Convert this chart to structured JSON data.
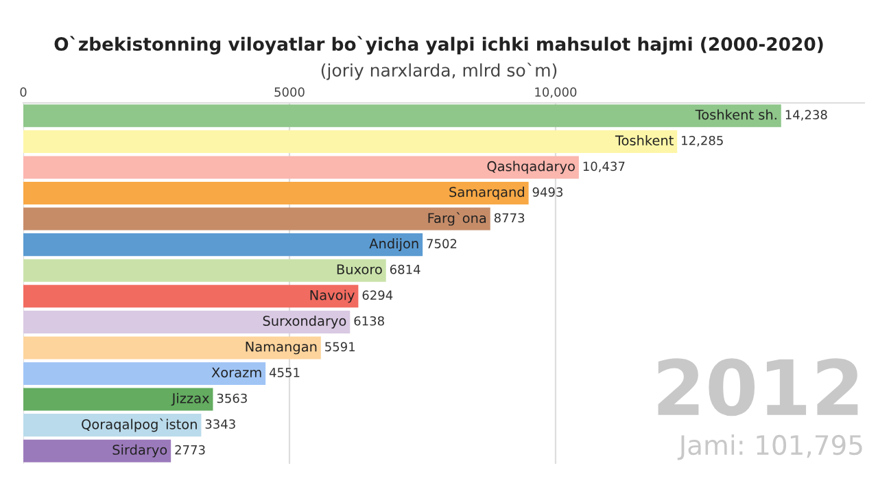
{
  "chart_data": {
    "type": "bar",
    "orientation": "horizontal",
    "title": "O`zbekistonning viloyatlar bo`yicha yalpi ichki mahsulot hajmi (2000-2020)",
    "subtitle": "(joriy narxlarda, mlrd so`m)",
    "categories": [
      "Toshkent sh.",
      "Toshkent",
      "Qashqadaryo",
      "Samarqand",
      "Farg`ona",
      "Andijon",
      "Buxoro",
      "Navoiy",
      "Surxondaryo",
      "Namangan",
      "Xorazm",
      "Jizzax",
      "Qoraqalpog`iston",
      "Sirdaryo"
    ],
    "values": [
      14238,
      12285,
      10437,
      9493,
      8773,
      7502,
      6814,
      6294,
      6138,
      5591,
      4551,
      3563,
      3343,
      2773
    ],
    "value_labels": [
      "14,238",
      "12,285",
      "10,437",
      "9493",
      "8773",
      "7502",
      "6814",
      "6294",
      "6138",
      "5591",
      "4551",
      "3563",
      "3343",
      "2773"
    ],
    "colors": [
      "#8fc68a",
      "#fdf6a8",
      "#fbb6ae",
      "#f8a845",
      "#c68c68",
      "#5b9bd2",
      "#cae2aa",
      "#f26b60",
      "#d9c9e3",
      "#fdd49c",
      "#a0c5f5",
      "#63ac60",
      "#badbeb",
      "#9b7abb"
    ],
    "xticks": [
      0,
      5000,
      {
        "value": 10000,
        "label": "10,000"
      }
    ],
    "xlim": [
      0,
      15800
    ],
    "grid": "x",
    "annotations": [
      "2012",
      "Jami: 101,795"
    ]
  }
}
